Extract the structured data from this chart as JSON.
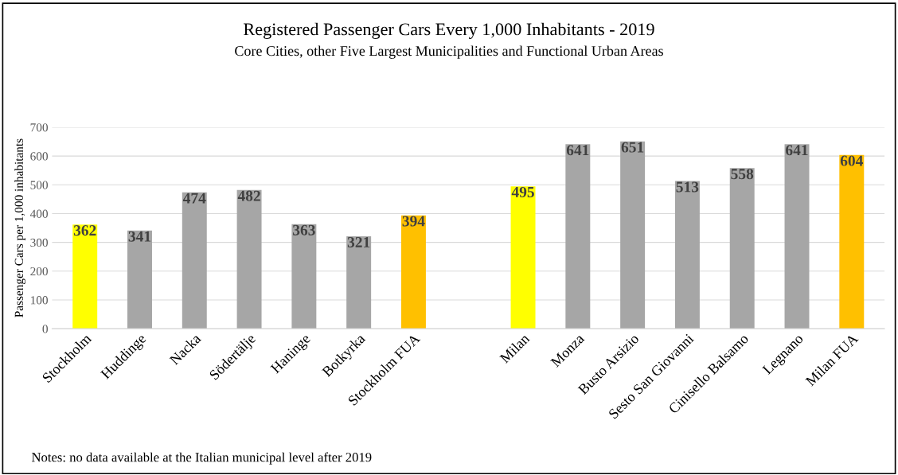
{
  "chart_data": {
    "type": "bar",
    "title": "Registered Passenger Cars Every 1,000 Inhabitants - 2019",
    "subtitle": "Core Cities, other Five Largest Municipalities and Functional Urban Areas",
    "ylabel": "Passenger Cars per 1,000 inhabitants",
    "categories": [
      "Stockholm",
      "Huddinge",
      "Nacka",
      "Södertälje",
      "Haninge",
      "Botkyrka",
      "Stockholm FUA",
      null,
      "Milan",
      "Monza",
      "Busto Arsizio",
      "Sesto San Giovanni",
      "Cinisello Balsamo",
      "Legnano",
      "Milan FUA"
    ],
    "values": [
      362,
      341,
      474,
      482,
      363,
      321,
      394,
      null,
      495,
      641,
      651,
      513,
      558,
      641,
      604
    ],
    "colors": [
      "#ffff00",
      "#a6a6a6",
      "#a6a6a6",
      "#a6a6a6",
      "#a6a6a6",
      "#a6a6a6",
      "#ffc000",
      null,
      "#ffff00",
      "#a6a6a6",
      "#a6a6a6",
      "#a6a6a6",
      "#a6a6a6",
      "#a6a6a6",
      "#ffc000"
    ],
    "ylim": [
      0,
      700
    ],
    "yticks": [
      0,
      100,
      200,
      300,
      400,
      500,
      600,
      700
    ],
    "grid": "y",
    "data_labels": true,
    "annotations": [
      "Notes: no data available at the Italian municipal level after 2019"
    ]
  }
}
